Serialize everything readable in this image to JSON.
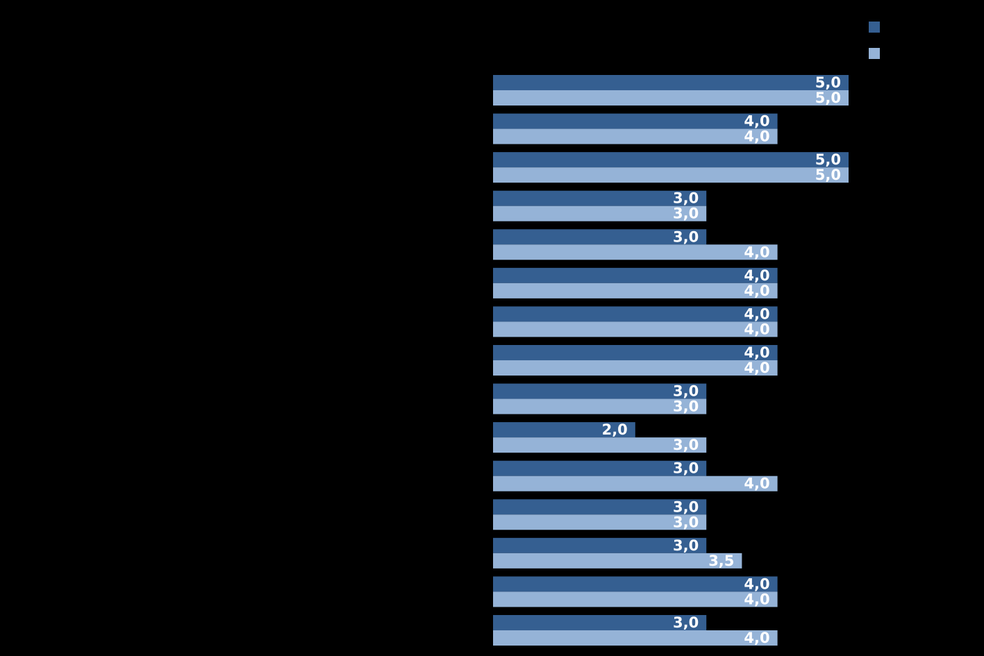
{
  "chart_data": {
    "type": "bar",
    "orientation": "horizontal",
    "categories": [
      null,
      null,
      null,
      null,
      null,
      null,
      null,
      null,
      null,
      null,
      null,
      null,
      null,
      null,
      null
    ],
    "series": [
      {
        "color": "#355f91",
        "values": [
          5,
          4,
          5,
          3,
          3,
          4,
          4,
          4,
          3,
          2,
          3,
          3,
          3,
          4,
          3
        ],
        "value_labels": [
          "5,0",
          "4,0",
          "5,0",
          "3,0",
          "3,0",
          "4,0",
          "4,0",
          "4,0",
          "3,0",
          "2,0",
          "3,0",
          "3,0",
          "3,0",
          "4,0",
          "3,0"
        ]
      },
      {
        "color": "#95b3d7",
        "values": [
          5,
          4,
          5,
          3,
          4,
          4,
          4,
          4,
          3,
          3,
          4,
          3,
          3.5,
          4,
          4
        ],
        "value_labels": [
          "5,0",
          "4,0",
          "5,0",
          "3,0",
          "4,0",
          "4,0",
          "4,0",
          "4,0",
          "3,0",
          "3,0",
          "4,0",
          "3,0",
          "3,5",
          "4,0",
          "4,0"
        ]
      }
    ],
    "xlim": [
      0,
      5
    ],
    "legend": "top-right"
  }
}
